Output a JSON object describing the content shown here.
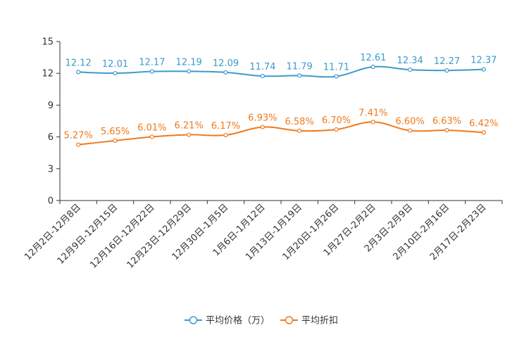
{
  "chart_data": {
    "type": "line",
    "categories": [
      "12月2日-12月8日",
      "12月9日-12月15日",
      "12月16日-12月22日",
      "12月23日-12月29日",
      "12月30日-1月5日",
      "1月6日-1月12日",
      "1月13日-1月19日",
      "1月20日-1月26日",
      "1月27日-2月2日",
      "2月3日-2月9日",
      "2月10日-2月16日",
      "2月17日-2月23日"
    ],
    "y_ticks": [
      "0",
      "3",
      "6",
      "9",
      "12",
      "15"
    ],
    "ylim": [
      0,
      15
    ],
    "series": [
      {
        "name": "平均价格（万）",
        "color": "#3d9bcb",
        "values": [
          12.12,
          12.01,
          12.17,
          12.19,
          12.09,
          11.74,
          11.79,
          11.71,
          12.61,
          12.34,
          12.27,
          12.37
        ],
        "labels": [
          "12.12",
          "12.01",
          "12.17",
          "12.19",
          "12.09",
          "11.74",
          "11.79",
          "11.71",
          "12.61",
          "12.34",
          "12.27",
          "12.37"
        ]
      },
      {
        "name": "平均折扣",
        "color": "#f07a1c",
        "values": [
          5.27,
          5.65,
          6.01,
          6.21,
          6.17,
          6.93,
          6.58,
          6.7,
          7.41,
          6.6,
          6.63,
          6.42
        ],
        "labels": [
          "5.27%",
          "5.65%",
          "6.01%",
          "6.21%",
          "6.17%",
          "6.93%",
          "6.58%",
          "6.70%",
          "7.41%",
          "6.60%",
          "6.63%",
          "6.42%"
        ]
      }
    ],
    "legend_position": "bottom-center"
  }
}
